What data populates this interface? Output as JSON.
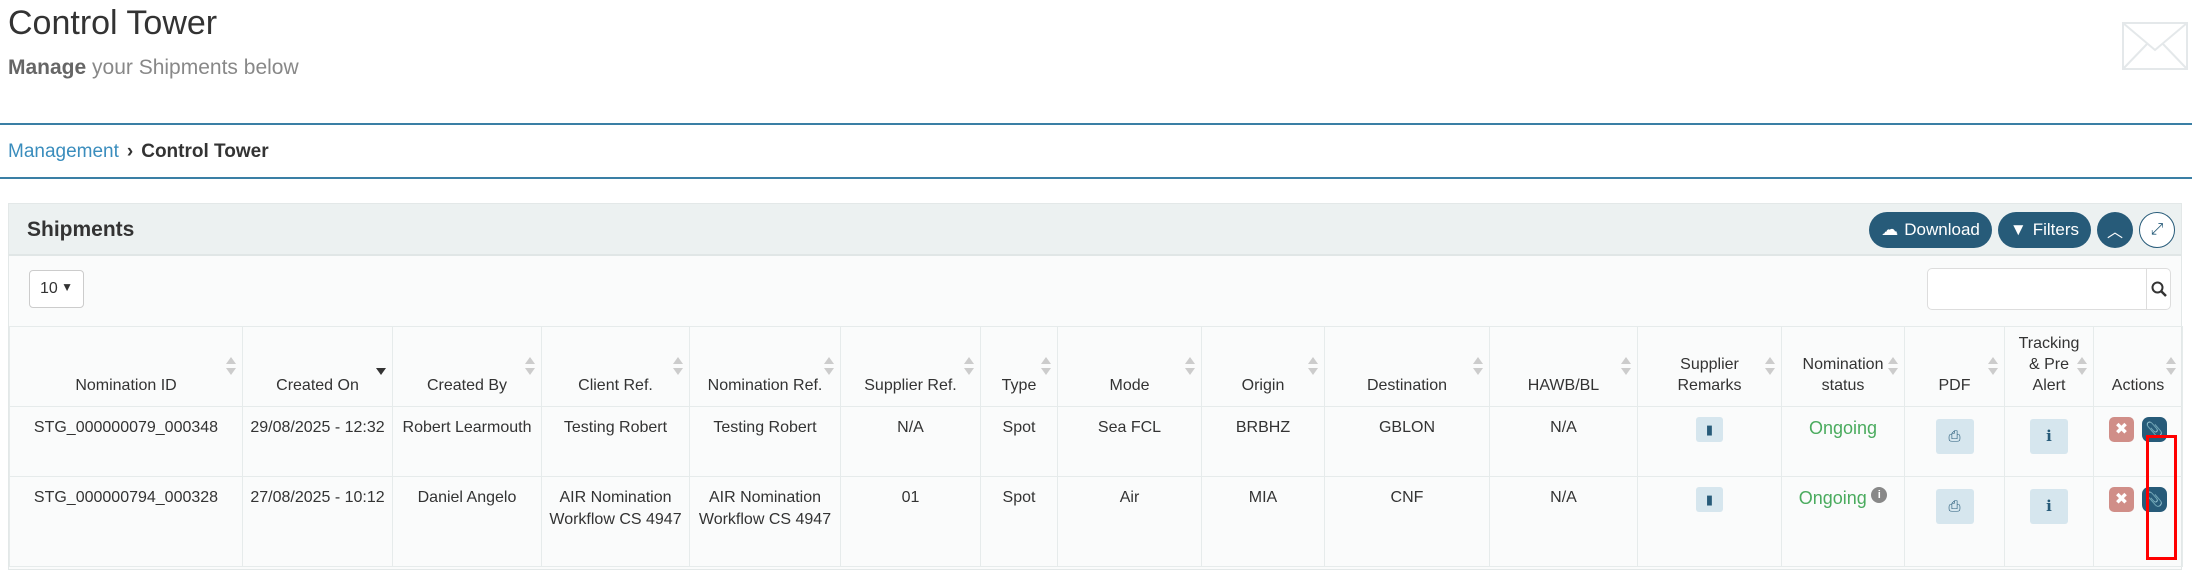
{
  "page": {
    "title": "Control Tower",
    "subtitle_bold": "Manage",
    "subtitle_rest": " your Shipments below"
  },
  "breadcrumb": {
    "parent": "Management",
    "separator": "›",
    "current": "Control Tower"
  },
  "panel": {
    "title": "Shipments",
    "download": "Download",
    "filters": "Filters",
    "page_length": "10",
    "search_value": ""
  },
  "columns": [
    "Nomination ID",
    "Created On",
    "Created By",
    "Client Ref.",
    "Nomination Ref.",
    "Supplier Ref.",
    "Type",
    "Mode",
    "Origin",
    "Destination",
    "HAWB/BL",
    "Supplier Remarks",
    "Nomination status",
    "PDF",
    "Tracking & Pre Alert",
    "Actions"
  ],
  "sorted_column": "Created On",
  "rows": [
    {
      "id": "STG_000000079_000348",
      "created_on": "29/08/2025 - 12:32",
      "created_by": "Robert Learmouth",
      "client_ref": "Testing Robert",
      "nom_ref": "Testing Robert",
      "supplier_ref": "N/A",
      "type": "Spot",
      "mode": "Sea FCL",
      "origin": "BRBHZ",
      "destination": "GBLON",
      "hawb": "N/A",
      "status": "Ongoing",
      "status_info": false
    },
    {
      "id": "STG_000000794_000328",
      "created_on": "27/08/2025 - 10:12",
      "created_by": "Daniel Angelo",
      "client_ref": "AIR Nomination Workflow CS 4947",
      "nom_ref": "AIR Nomination Workflow CS 4947",
      "supplier_ref": "01",
      "type": "Spot",
      "mode": "Air",
      "origin": "MIA",
      "destination": "CNF",
      "hawb": "N/A",
      "status": "Ongoing",
      "status_info": true
    }
  ],
  "colors": {
    "primary": "#275b79",
    "status_ongoing": "#4aab5e",
    "delete": "#d08e88",
    "highlight": "#ff0000"
  }
}
